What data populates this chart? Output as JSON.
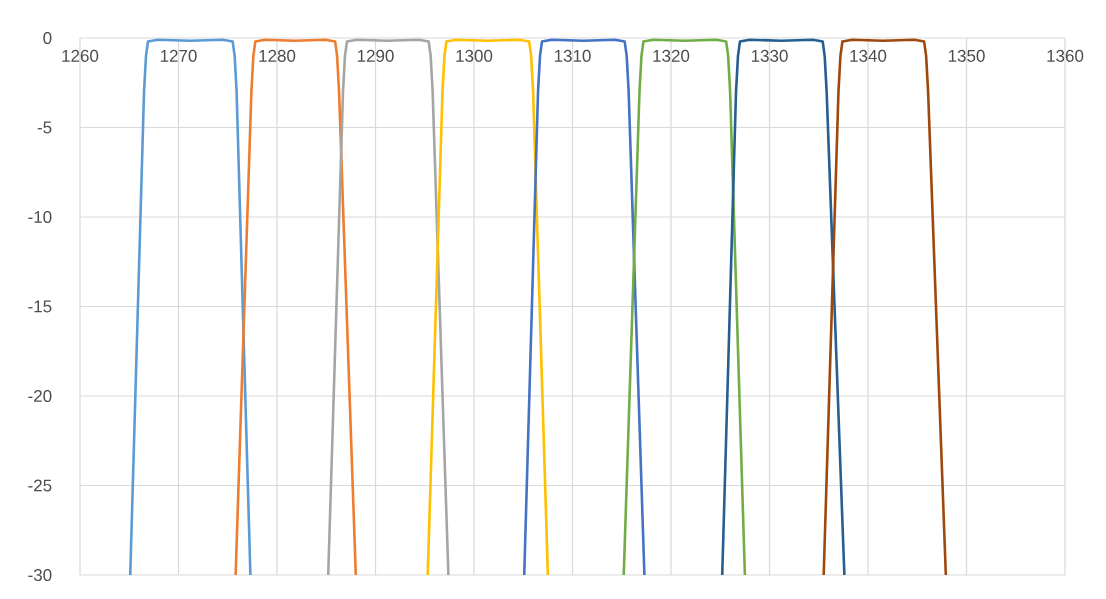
{
  "chart_data": {
    "type": "line",
    "xlim": [
      1260,
      1360
    ],
    "ylim": [
      -30,
      0
    ],
    "xticks": [
      1260,
      1270,
      1280,
      1290,
      1300,
      1310,
      1320,
      1330,
      1340,
      1350,
      1360
    ],
    "yticks": [
      -30,
      -25,
      -20,
      -15,
      -10,
      -5,
      0
    ],
    "grid": true,
    "marker": "none",
    "line_style": "solid",
    "series": [
      {
        "color": "#5b9bd5",
        "x": [
          1265.1,
          1266.5,
          1266.7,
          1266.9,
          1267.9,
          1271.2,
          1274.5,
          1275.5,
          1275.7,
          1275.9,
          1277.3
        ],
        "values": [
          -30,
          -3,
          -1,
          -0.2,
          -0.1,
          -0.15,
          -0.1,
          -0.2,
          -1,
          -3,
          -30
        ]
      },
      {
        "color": "#ed7d31",
        "x": [
          1275.8,
          1277.4,
          1277.6,
          1277.8,
          1278.8,
          1281.8,
          1284.9,
          1285.9,
          1286.1,
          1286.3,
          1288.0
        ],
        "values": [
          -30,
          -3,
          -1,
          -0.2,
          -0.1,
          -0.15,
          -0.1,
          -0.2,
          -1,
          -3,
          -30
        ]
      },
      {
        "color": "#a5a5a5",
        "x": [
          1285.2,
          1286.7,
          1286.9,
          1287.1,
          1288.1,
          1291.2,
          1294.4,
          1295.4,
          1295.6,
          1295.8,
          1297.4
        ],
        "values": [
          -30,
          -3,
          -1,
          -0.2,
          -0.1,
          -0.15,
          -0.1,
          -0.2,
          -1,
          -3,
          -30
        ]
      },
      {
        "color": "#ffc000",
        "x": [
          1295.3,
          1296.8,
          1297.0,
          1297.2,
          1298.2,
          1301.4,
          1304.6,
          1305.6,
          1305.8,
          1306.0,
          1307.5
        ],
        "values": [
          -30,
          -3,
          -1,
          -0.2,
          -0.1,
          -0.15,
          -0.1,
          -0.2,
          -1,
          -3,
          -30
        ]
      },
      {
        "color": "#4472c4",
        "x": [
          1305.1,
          1306.5,
          1306.7,
          1306.9,
          1307.9,
          1311.1,
          1314.3,
          1315.3,
          1315.5,
          1315.7,
          1317.3
        ],
        "values": [
          -30,
          -3,
          -1,
          -0.2,
          -0.1,
          -0.15,
          -0.1,
          -0.2,
          -1,
          -3,
          -30
        ]
      },
      {
        "color": "#70ad47",
        "x": [
          1315.2,
          1316.8,
          1317.0,
          1317.2,
          1318.2,
          1321.4,
          1324.6,
          1325.6,
          1325.8,
          1326.0,
          1327.5
        ],
        "values": [
          -30,
          -3,
          -1,
          -0.2,
          -0.1,
          -0.15,
          -0.1,
          -0.2,
          -1,
          -3,
          -30
        ]
      },
      {
        "color": "#255e91",
        "x": [
          1325.2,
          1326.6,
          1326.8,
          1327.0,
          1328.0,
          1331.2,
          1334.4,
          1335.4,
          1335.6,
          1335.8,
          1337.6
        ],
        "values": [
          -30,
          -3,
          -1,
          -0.2,
          -0.1,
          -0.15,
          -0.1,
          -0.2,
          -1,
          -3,
          -30
        ]
      },
      {
        "color": "#9e480e",
        "x": [
          1335.5,
          1337.0,
          1337.2,
          1337.4,
          1338.4,
          1341.5,
          1344.7,
          1345.7,
          1345.9,
          1346.1,
          1347.9
        ],
        "values": [
          -30,
          -3,
          -1,
          -0.2,
          -0.1,
          -0.15,
          -0.1,
          -0.2,
          -1,
          -3,
          -30
        ]
      }
    ]
  }
}
